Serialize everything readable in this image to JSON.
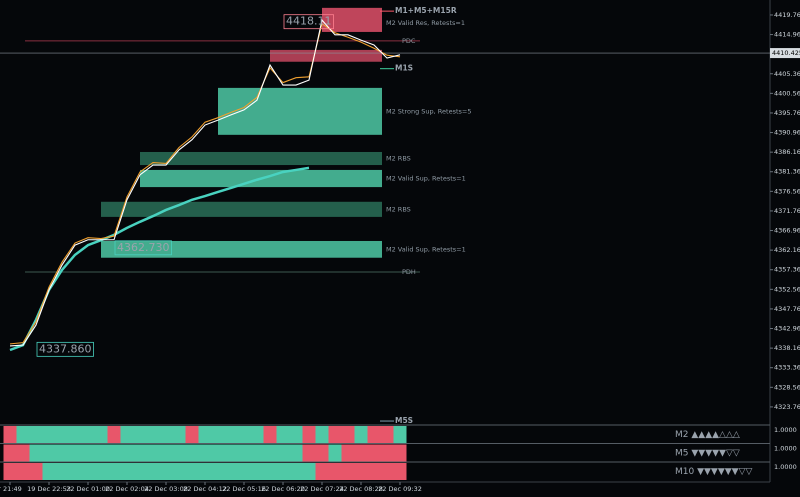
{
  "chart_data": {
    "type": "line",
    "categories": [
      "r 21:49",
      null,
      null,
      "19 Dec 22:53",
      null,
      null,
      "22 Dec 01:00",
      null,
      null,
      "22 Dec 02:04",
      null,
      null,
      "22 Dec 03:08",
      null,
      null,
      "22 Dec 04:12",
      null,
      null,
      "22 Dec 05:16",
      null,
      null,
      "22 Dec 06:20",
      null,
      null,
      "22 Dec 07:24",
      null,
      null,
      "22 Dec 08:28",
      null,
      null,
      "22 Dec 09:32"
    ],
    "ylim": [
      4319.5,
      4422.2
    ],
    "yticks": [
      {
        "value": 4419.76,
        "label": "4419.760"
      },
      {
        "value": 4414.96,
        "label": "4414.960"
      },
      {
        "value": 4405.36,
        "label": "4405.360"
      },
      {
        "value": 4400.56,
        "label": "4400.560"
      },
      {
        "value": 4395.76,
        "label": "4395.760"
      },
      {
        "value": 4390.96,
        "label": "4390.960"
      },
      {
        "value": 4386.16,
        "label": "4386.160"
      },
      {
        "value": 4381.36,
        "label": "4381.360"
      },
      {
        "value": 4376.56,
        "label": "4376.560"
      },
      {
        "value": 4371.76,
        "label": "4371.760"
      },
      {
        "value": 4366.96,
        "label": "4366.960"
      },
      {
        "value": 4362.16,
        "label": "4362.160"
      },
      {
        "value": 4357.36,
        "label": "4357.360"
      },
      {
        "value": 4352.56,
        "label": "4352.560"
      },
      {
        "value": 4347.76,
        "label": "4347.760"
      },
      {
        "value": 4342.96,
        "label": "4342.960"
      },
      {
        "value": 4338.16,
        "label": "4338.160"
      },
      {
        "value": 4333.36,
        "label": "4333.360"
      },
      {
        "value": 4328.56,
        "label": "4328.560"
      },
      {
        "value": 4323.76,
        "label": "4323.760"
      }
    ],
    "last_price": 4410.425,
    "series": [
      {
        "color": "#49d2c0",
        "values": [
          4337.7,
          4338.9,
          4345.1,
          4352.4,
          4357.3,
          4361.0,
          4363.4,
          4364.6,
          4365.9,
          4367.6,
          4369.1,
          4370.5,
          4372.0,
          4373.2,
          4374.5,
          4375.4,
          4376.4,
          4377.4,
          4378.4,
          4379.4,
          4380.3,
          4381.3,
          4381.8,
          4382.3,
          null,
          null,
          null,
          null,
          null,
          null,
          null
        ]
      },
      {
        "color": "#f0a030",
        "values": [
          4339.2,
          4339.5,
          4344.6,
          4353.1,
          4359.2,
          4363.9,
          4365.2,
          4365.0,
          4365.6,
          4375.2,
          4381.3,
          4383.6,
          4383.4,
          4387.3,
          4389.9,
          4393.5,
          4394.6,
          4395.9,
          4397.1,
          4399.6,
          4406.8,
          4403.2,
          4404.4,
          4404.6,
          4417.6,
          4415.4,
          4414.3,
          4413.1,
          4411.6,
          4409.9,
          4409.5
        ]
      },
      {
        "color": "#ffffff",
        "values": [
          4338.7,
          4338.9,
          4343.8,
          4352.4,
          4358.5,
          4363.4,
          4364.7,
          4364.7,
          4364.7,
          4374.5,
          4380.6,
          4383.0,
          4383.0,
          4386.7,
          4389.2,
          4392.8,
          4394.0,
          4395.3,
          4396.5,
          4398.9,
          4407.5,
          4402.6,
          4402.6,
          4403.8,
          4418.5,
          4414.9,
          4414.9,
          4413.6,
          4412.4,
          4409.2,
          4410.0
        ]
      }
    ],
    "zones": [
      {
        "label": "M2 Valid Res, Retests=1",
        "top": 4421.5,
        "bottom": 4415.6,
        "start": 24,
        "color": "#e0506a"
      },
      {
        "top": 4411.2,
        "bottom": 4408.3,
        "start": 20,
        "color": "#c84860"
      },
      {
        "label": "M2 Strong Sup, Retests=5",
        "top": 4401.9,
        "bottom": 4390.4,
        "start": 16,
        "color": "#4fc9a6"
      },
      {
        "label": "M2 RBS",
        "top": 4386.2,
        "bottom": 4383.0,
        "start": 10,
        "color": "#2a6e58"
      },
      {
        "label": "M2 Valid Sup, Retests=1",
        "top": 4381.8,
        "bottom": 4377.6,
        "start": 10,
        "color": "#4fc9a6"
      },
      {
        "label": "M2 RBS",
        "top": 4374.0,
        "bottom": 4370.3,
        "start": 7,
        "color": "#2a6e58"
      },
      {
        "label": "M2 Valid Sup, Retests=1",
        "top": 4364.4,
        "bottom": 4360.3,
        "start": 7,
        "color": "#4fc9a6"
      }
    ],
    "levels": [
      {
        "label": "PDC",
        "value": 4413.4,
        "color": "#8a3040"
      },
      {
        "label": "PDH",
        "value": 4356.8,
        "color": "#3d5a50"
      }
    ],
    "tags": [
      {
        "text": "M1+M5+M15R",
        "value": 4420.7,
        "color": "#ff5a6a"
      },
      {
        "text": "M1S",
        "value": 4406.6,
        "color": "#40d0a0"
      },
      {
        "text": "M5S",
        "value": 4320.3,
        "color": "#7fa0b0"
      }
    ],
    "price_labels": [
      {
        "value": 4418.11,
        "index": 21,
        "color": "#ff8090"
      },
      {
        "value": 4362.73,
        "label": "4362.730",
        "index": 8,
        "color": "#49d2c0"
      },
      {
        "value": 4337.86,
        "label": "4337.860",
        "index": 2,
        "color": "#49d2c0"
      }
    ],
    "panels": [
      {
        "label": "M2 ▲▲▲▲△△△",
        "scale": "1.0000",
        "label_color": "#49d2c0",
        "states": [
          0,
          1,
          1,
          1,
          1,
          1,
          1,
          1,
          0,
          1,
          1,
          1,
          1,
          1,
          0,
          1,
          1,
          1,
          1,
          1,
          0,
          1,
          1,
          0,
          1,
          0,
          0,
          1,
          0,
          0,
          1
        ]
      },
      {
        "label": "M5 ▼▼▼▼▼▽▽",
        "scale": "1.0000",
        "label_color": "#ff6070",
        "states": [
          0,
          0,
          1,
          1,
          1,
          1,
          1,
          1,
          1,
          1,
          1,
          1,
          1,
          1,
          1,
          1,
          1,
          1,
          1,
          1,
          1,
          1,
          1,
          0,
          0,
          1,
          0,
          0,
          0,
          0,
          0
        ]
      },
      {
        "label": "M10 ▼▼▼▼▼▼▽▽",
        "scale": "1.0000",
        "label_color": "#ff6070",
        "states": [
          0,
          0,
          0,
          1,
          1,
          1,
          1,
          1,
          1,
          1,
          1,
          1,
          1,
          1,
          1,
          1,
          1,
          1,
          1,
          1,
          1,
          1,
          1,
          1,
          0,
          0,
          0,
          0,
          0,
          0,
          0
        ]
      }
    ],
    "up_color": "#4fc9a6",
    "down_color": "#e8566a"
  }
}
